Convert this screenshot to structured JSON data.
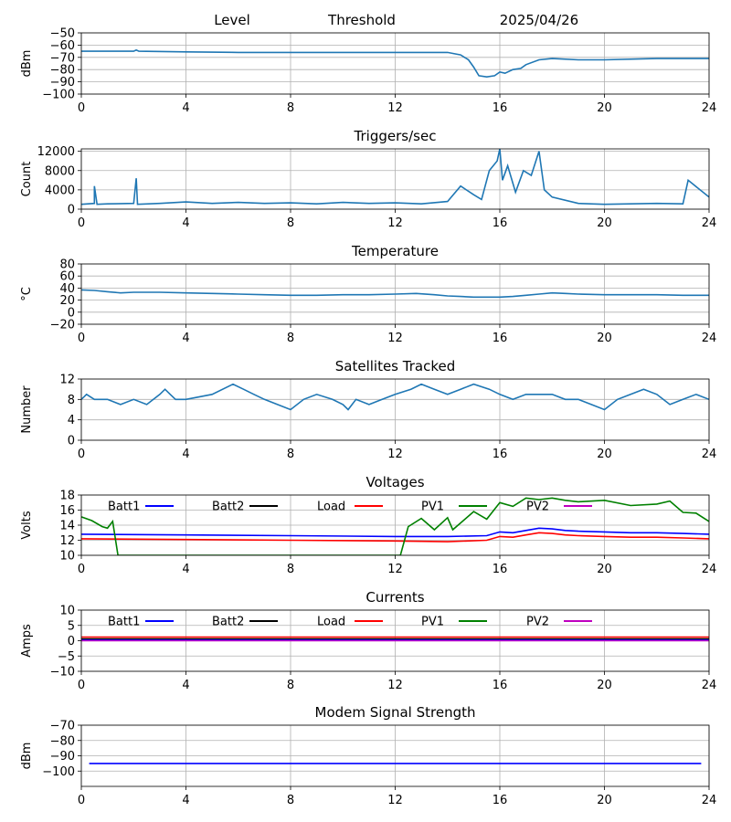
{
  "header": {
    "level": "Level",
    "threshold": "Threshold",
    "date": "2025/04/26"
  },
  "chart_data": [
    {
      "type": "line",
      "title": "",
      "ylabel": "dBm",
      "xlim": [
        0,
        24
      ],
      "ylim": [
        -100,
        -50
      ],
      "xticks": [
        0,
        4,
        8,
        12,
        16,
        20,
        24
      ],
      "yticks": [
        -50,
        -60,
        -70,
        -80,
        -90,
        -100
      ],
      "grid": true,
      "series": [
        {
          "color": "#1f77b4",
          "x": [
            0,
            1,
            2,
            2.1,
            2.2,
            4,
            6,
            8,
            10,
            12,
            13,
            14,
            14.5,
            14.8,
            15,
            15.2,
            15.5,
            15.8,
            16,
            16.2,
            16.5,
            16.8,
            17,
            17.5,
            18,
            19,
            20,
            22,
            24
          ],
          "y": [
            -65,
            -65,
            -65,
            -64,
            -65,
            -65.5,
            -66,
            -66,
            -66,
            -66,
            -66,
            -66,
            -68,
            -72,
            -78,
            -85,
            -86,
            -85,
            -82,
            -83,
            -80,
            -79,
            -76,
            -72,
            -71,
            -72,
            -72,
            -71,
            -71
          ]
        }
      ]
    },
    {
      "type": "line",
      "title": "Triggers/sec",
      "ylabel": "Count",
      "xlim": [
        0,
        24
      ],
      "ylim": [
        0,
        12500
      ],
      "xticks": [
        0,
        4,
        8,
        12,
        16,
        20,
        24
      ],
      "yticks": [
        0,
        4000,
        8000,
        12000
      ],
      "grid": true,
      "series": [
        {
          "color": "#1f77b4",
          "x": [
            0,
            0.5,
            0.5,
            0.6,
            1,
            2,
            2.1,
            2.15,
            3,
            4,
            5,
            6,
            7,
            8,
            9,
            10,
            11,
            12,
            13,
            14,
            14.5,
            15,
            15.3,
            15.6,
            15.9,
            16,
            16.1,
            16.3,
            16.6,
            16.9,
            17.2,
            17.5,
            17.7,
            18,
            19,
            20,
            21,
            22,
            23,
            23.2,
            24
          ],
          "y": [
            1000,
            1200,
            4800,
            1000,
            1100,
            1200,
            6400,
            1000,
            1200,
            1500,
            1200,
            1400,
            1200,
            1300,
            1100,
            1400,
            1200,
            1300,
            1100,
            1600,
            4800,
            3000,
            2000,
            8000,
            10000,
            12500,
            6000,
            9000,
            3500,
            8000,
            7000,
            12000,
            4000,
            2500,
            1200,
            1000,
            1100,
            1200,
            1100,
            6000,
            2500
          ]
        }
      ]
    },
    {
      "type": "line",
      "title": "Temperature",
      "ylabel": "°C",
      "xlim": [
        0,
        24
      ],
      "ylim": [
        -20,
        80
      ],
      "xticks": [
        0,
        4,
        8,
        12,
        16,
        20,
        24
      ],
      "yticks": [
        80,
        60,
        40,
        20,
        0,
        -20
      ],
      "grid": true,
      "series": [
        {
          "color": "#1f77b4",
          "x": [
            0,
            0.5,
            1,
            1.5,
            2,
            3,
            4,
            5,
            6,
            7,
            8,
            9,
            10,
            11,
            12,
            12.8,
            13.5,
            14,
            14.5,
            15,
            15.5,
            16,
            16.5,
            17,
            17.5,
            18,
            18.5,
            19,
            20,
            21,
            22,
            23,
            24
          ],
          "y": [
            37,
            36,
            34,
            32,
            33,
            33,
            32,
            31,
            30,
            29,
            28,
            28,
            29,
            29,
            30,
            31,
            29,
            27,
            26,
            25,
            25,
            25,
            26,
            28,
            30,
            32,
            31,
            30,
            29,
            29,
            29,
            28,
            28
          ]
        }
      ]
    },
    {
      "type": "line",
      "title": "Satellites Tracked",
      "ylabel": "Number",
      "xlim": [
        0,
        24
      ],
      "ylim": [
        0,
        12
      ],
      "xticks": [
        0,
        4,
        8,
        12,
        16,
        20,
        24
      ],
      "yticks": [
        0,
        4,
        8,
        12
      ],
      "grid": true,
      "series": [
        {
          "color": "#1f77b4",
          "x": [
            0,
            0.2,
            0.5,
            1,
            1.5,
            2,
            2.5,
            3,
            3.2,
            3.4,
            3.6,
            4,
            5,
            5.8,
            6.2,
            6.6,
            7,
            7.5,
            8,
            8.5,
            9,
            9.6,
            10,
            10.2,
            10.5,
            11,
            11.5,
            12,
            12.6,
            13,
            13.5,
            14,
            14.5,
            15,
            15.6,
            16,
            16.5,
            17,
            17.5,
            18,
            18.5,
            19,
            19.5,
            20,
            20.5,
            21,
            21.5,
            22,
            22.5,
            23,
            23.5,
            24
          ],
          "y": [
            8,
            9,
            8,
            8,
            7,
            8,
            7,
            9,
            10,
            9,
            8,
            8,
            9,
            11,
            10,
            9,
            8,
            7,
            6,
            8,
            9,
            8,
            7,
            6,
            8,
            7,
            8,
            9,
            10,
            11,
            10,
            9,
            10,
            11,
            10,
            9,
            8,
            9,
            9,
            9,
            8,
            8,
            7,
            6,
            8,
            9,
            10,
            9,
            7,
            8,
            9,
            8
          ]
        }
      ]
    },
    {
      "type": "line",
      "title": "Voltages",
      "ylabel": "Volts",
      "xlim": [
        0,
        24
      ],
      "ylim": [
        10,
        18
      ],
      "xticks": [
        0,
        4,
        8,
        12,
        16,
        20,
        24
      ],
      "yticks": [
        10,
        12,
        14,
        16,
        18
      ],
      "grid": true,
      "legend": [
        {
          "label": "Batt1",
          "color": "#0000ff"
        },
        {
          "label": "Batt2",
          "color": "#000000"
        },
        {
          "label": "Load",
          "color": "#ff0000"
        },
        {
          "label": "PV1",
          "color": "#008000"
        },
        {
          "label": "PV2",
          "color": "#bf00bf"
        }
      ],
      "series": [
        {
          "name": "Batt1",
          "color": "#0000ff",
          "x": [
            0,
            4,
            8,
            12,
            14,
            15.5,
            16,
            16.5,
            17,
            17.5,
            18,
            18.5,
            19,
            20,
            21,
            22,
            23,
            24
          ],
          "y": [
            12.8,
            12.7,
            12.6,
            12.5,
            12.5,
            12.6,
            13.1,
            13.0,
            13.3,
            13.6,
            13.5,
            13.3,
            13.2,
            13.1,
            13.0,
            13.0,
            12.9,
            12.8
          ]
        },
        {
          "name": "Load",
          "color": "#ff0000",
          "x": [
            0,
            4,
            8,
            12,
            14,
            15.5,
            16,
            16.5,
            17,
            17.5,
            18,
            18.5,
            19,
            20,
            21,
            22,
            23,
            24
          ],
          "y": [
            12.2,
            12.1,
            12.0,
            11.9,
            11.8,
            12.0,
            12.5,
            12.4,
            12.7,
            13.0,
            12.9,
            12.7,
            12.6,
            12.5,
            12.4,
            12.4,
            12.3,
            12.2
          ]
        },
        {
          "name": "PV1",
          "color": "#008000",
          "x": [
            0,
            0.4,
            0.8,
            1,
            1.2,
            1.4,
            12.2,
            12.5,
            13,
            13.5,
            14,
            14.2,
            15,
            15.5,
            16,
            16.5,
            17,
            17.5,
            18,
            18.5,
            19,
            20,
            21,
            22,
            22.5,
            23,
            23.5,
            24
          ],
          "y": [
            15.1,
            14.6,
            13.8,
            13.6,
            14.5,
            10.0,
            10.0,
            13.8,
            14.9,
            13.4,
            15.0,
            13.4,
            15.8,
            14.8,
            17.0,
            16.5,
            17.6,
            17.4,
            17.6,
            17.3,
            17.1,
            17.3,
            16.6,
            16.8,
            17.2,
            15.7,
            15.6,
            14.5
          ]
        }
      ]
    },
    {
      "type": "line",
      "title": "Currents",
      "ylabel": "Amps",
      "xlim": [
        0,
        24
      ],
      "ylim": [
        -10,
        10
      ],
      "xticks": [
        0,
        4,
        8,
        12,
        16,
        20,
        24
      ],
      "yticks": [
        10,
        5,
        0,
        -5,
        -10
      ],
      "grid": true,
      "legend": [
        {
          "label": "Batt1",
          "color": "#0000ff"
        },
        {
          "label": "Batt2",
          "color": "#000000"
        },
        {
          "label": "Load",
          "color": "#ff0000"
        },
        {
          "label": "PV1",
          "color": "#008000"
        },
        {
          "label": "PV2",
          "color": "#bf00bf"
        }
      ],
      "series": [
        {
          "name": "Load",
          "color": "#ff0000",
          "x": [
            0,
            24
          ],
          "y": [
            1.2,
            1.2
          ]
        },
        {
          "name": "Batt2",
          "color": "#000000",
          "x": [
            0,
            24
          ],
          "y": [
            0.6,
            0.6
          ]
        },
        {
          "name": "Batt1",
          "color": "#0000ff",
          "x": [
            0,
            24
          ],
          "y": [
            0.2,
            0.2
          ]
        },
        {
          "name": "PV2",
          "color": "#bf00bf",
          "x": [
            0,
            24
          ],
          "y": [
            0.0,
            0.0
          ]
        }
      ]
    },
    {
      "type": "line",
      "title": "Modem Signal Strength",
      "ylabel": "dBm",
      "xlim": [
        0,
        24
      ],
      "ylim": [
        -110,
        -70
      ],
      "xticks": [
        0,
        4,
        8,
        12,
        16,
        20,
        24
      ],
      "yticks": [
        -70,
        -80,
        -90,
        -100
      ],
      "grid": true,
      "series": [
        {
          "color": "#0000ff",
          "x": [
            0.3,
            23.7
          ],
          "y": [
            -95,
            -95
          ]
        }
      ]
    }
  ]
}
